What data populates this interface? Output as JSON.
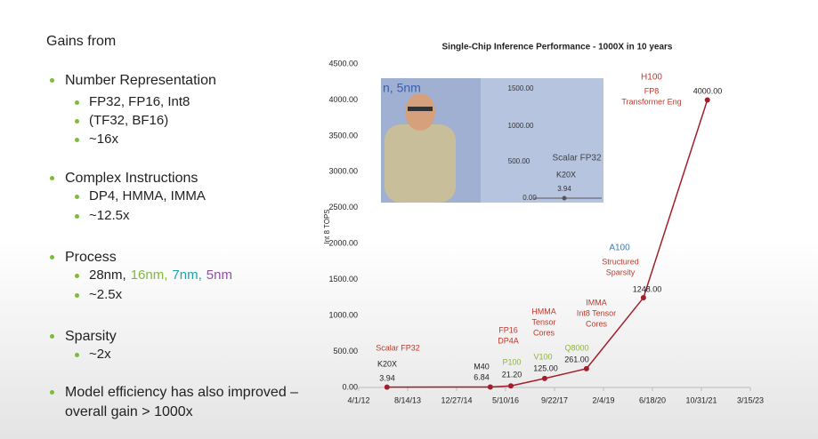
{
  "slide": {
    "heading": "Gains from",
    "bullets": [
      {
        "text": "Number Representation",
        "sub": [
          [
            {
              "text": "FP32, FP16, Int8"
            }
          ],
          [
            {
              "text": "(TF32, BF16)"
            }
          ],
          [
            {
              "text": "~16x"
            }
          ]
        ]
      },
      {
        "text": "Complex Instructions",
        "sub": [
          [
            {
              "text": "DP4, HMMA, IMMA"
            }
          ],
          [
            {
              "text": "~12.5x"
            }
          ]
        ]
      },
      {
        "text": "Process",
        "sub": [
          [
            {
              "text": "28nm,",
              "color": "#222222"
            },
            {
              "text": "16nm,",
              "color": "#7dbb3c"
            },
            {
              "text": "7nm,",
              "color": "#1fa3a8"
            },
            {
              "text": "5nm",
              "color": "#8e4fa0"
            }
          ],
          [
            {
              "text": "~2.5x"
            }
          ]
        ]
      },
      {
        "text": "Sparsity",
        "sub": [
          [
            {
              "text": "~2x"
            }
          ]
        ]
      },
      {
        "text": "Model efficiency has also improved – overall gain > 1000x",
        "sub": []
      }
    ]
  },
  "video_overlay": {
    "texts": [
      "n, 5nm",
      "1500.00",
      "1000.00",
      "500.00",
      "0.00",
      "Scalar FP32",
      "K20X",
      "3.94"
    ]
  },
  "chart_data": {
    "type": "line",
    "title": "Single-Chip Inference Performance - 1000X in 10 years",
    "y_label": "Int 8 TOPS",
    "x": [
      "2013-01-15",
      "2015-12-06",
      "2016-07-03",
      "2017-06-13",
      "2018-08-14",
      "2020-03-18",
      "2021-12-31"
    ],
    "values": [
      3.94,
      6.84,
      21.2,
      125,
      261,
      1248,
      4000
    ],
    "value_labels": [
      "3.94",
      "6.84",
      "21.20",
      "125.00",
      "261.00",
      "1248.00",
      "4000.00"
    ],
    "color": "#a31d2b",
    "xlim": [
      "2012-04-01",
      "2023-03-15"
    ],
    "xticks": [
      {
        "value": "2012-04-01",
        "label": "4/1/12"
      },
      {
        "value": "2013-08-14",
        "label": "8/14/13"
      },
      {
        "value": "2014-12-27",
        "label": "12/27/14"
      },
      {
        "value": "2016-05-10",
        "label": "5/10/16"
      },
      {
        "value": "2017-09-22",
        "label": "9/22/17"
      },
      {
        "value": "2019-02-04",
        "label": "2/4/19"
      },
      {
        "value": "2020-06-18",
        "label": "6/18/20"
      },
      {
        "value": "2021-10-31",
        "label": "10/31/21"
      },
      {
        "value": "2023-03-15",
        "label": "3/15/23"
      }
    ],
    "ylim": [
      0,
      4500
    ],
    "yticks": [
      {
        "value": 0,
        "label": "0.00"
      },
      {
        "value": 500,
        "label": "500.00"
      },
      {
        "value": 1000,
        "label": "1000.00"
      },
      {
        "value": 1500,
        "label": "1500.00"
      },
      {
        "value": 2000,
        "label": "2000.00"
      },
      {
        "value": 2500,
        "label": "2500.00"
      },
      {
        "value": 3000,
        "label": "3000.00"
      },
      {
        "value": 3500,
        "label": "3500.00"
      },
      {
        "value": 4000,
        "label": "4000.00"
      },
      {
        "value": 4500,
        "label": "4500.00"
      }
    ],
    "annotations": [
      {
        "text": "Scalar FP32",
        "color": "#c0392b"
      },
      {
        "text": "K20X",
        "color": "#222222"
      },
      {
        "text": "M40",
        "color": "#222222"
      },
      {
        "text": "P100",
        "color": "#8cb43c"
      },
      {
        "text": "FP16",
        "color": "#c0392b"
      },
      {
        "text": "DP4A",
        "color": "#c0392b"
      },
      {
        "text": "HMMA",
        "color": "#c0392b"
      },
      {
        "text": "Tensor",
        "color": "#c0392b"
      },
      {
        "text": "Cores",
        "color": "#c0392b"
      },
      {
        "text": "V100",
        "color": "#8cb43c"
      },
      {
        "text": "Q8000",
        "color": "#8cb43c"
      },
      {
        "text": "IMMA",
        "color": "#c0392b"
      },
      {
        "text": "Int8 Tensor",
        "color": "#c0392b"
      },
      {
        "text": "Cores",
        "color": "#c0392b"
      },
      {
        "text": "A100",
        "color": "#2e7fb8"
      },
      {
        "text": "Structured",
        "color": "#c0392b"
      },
      {
        "text": "Sparsity",
        "color": "#c0392b"
      },
      {
        "text": "H100",
        "color": "#c0392b"
      },
      {
        "text": "FP8",
        "color": "#c0392b"
      },
      {
        "text": "Transformer Eng",
        "color": "#c0392b"
      }
    ]
  }
}
